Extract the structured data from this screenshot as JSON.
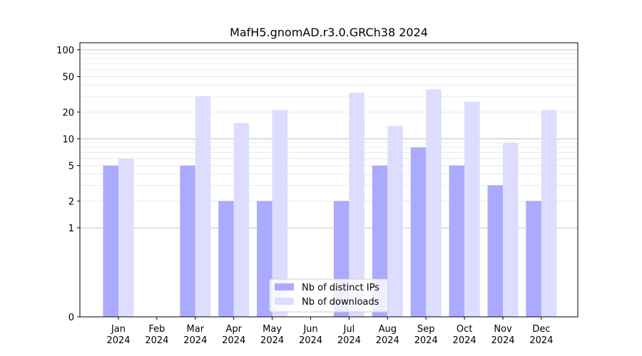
{
  "chart_data": {
    "type": "bar",
    "title": "MafH5.gnomAD.r3.0.GRCh38 2024",
    "xlabel": "",
    "ylabel": "",
    "y_scale": "symlog",
    "ylim": [
      0,
      120
    ],
    "y_ticks": [
      0,
      1,
      2,
      5,
      10,
      20,
      50,
      100
    ],
    "y_tick_labels": [
      "0",
      "1",
      "2",
      "5",
      "10",
      "20",
      "50",
      "100"
    ],
    "categories": [
      "Jan\n2024",
      "Feb\n2024",
      "Mar\n2024",
      "Apr\n2024",
      "May\n2024",
      "Jun\n2024",
      "Jul\n2024",
      "Aug\n2024",
      "Sep\n2024",
      "Oct\n2024",
      "Nov\n2024",
      "Dec\n2024"
    ],
    "series": [
      {
        "name": "Nb of distinct IPs",
        "color": "#aaaaff",
        "values": [
          5,
          0,
          5,
          2,
          2,
          0,
          2,
          5,
          8,
          5,
          3,
          2
        ]
      },
      {
        "name": "Nb of downloads",
        "color": "#ddddff",
        "values": [
          6,
          0,
          30,
          15,
          21,
          0,
          33,
          14,
          36,
          26,
          9,
          21
        ]
      }
    ],
    "legend_position": "bottom-center",
    "grid": true
  }
}
